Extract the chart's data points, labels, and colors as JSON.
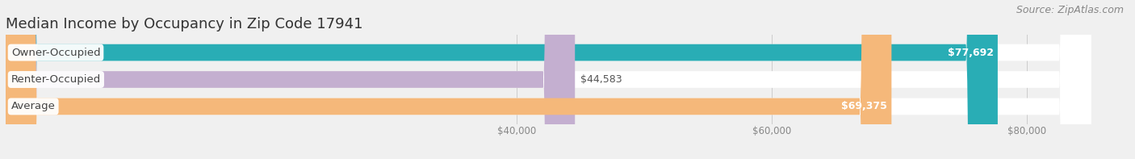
{
  "title": "Median Income by Occupancy in Zip Code 17941",
  "source": "Source: ZipAtlas.com",
  "categories": [
    "Owner-Occupied",
    "Renter-Occupied",
    "Average"
  ],
  "values": [
    77692,
    44583,
    69375
  ],
  "bar_colors": [
    "#29adb5",
    "#c4afd0",
    "#f5b87a"
  ],
  "value_labels": [
    "$77,692",
    "$44,583",
    "$69,375"
  ],
  "xmin": 0,
  "xmax": 85000,
  "xlim_left": 0,
  "xlim_right": 88000,
  "xticks": [
    40000,
    60000,
    80000
  ],
  "xtick_labels": [
    "$40,000",
    "$60,000",
    "$80,000"
  ],
  "bar_height": 0.62,
  "background_color": "#f0f0f0",
  "bar_bg_color": "#e8e8e8",
  "title_fontsize": 13,
  "source_fontsize": 9,
  "label_fontsize": 9.5,
  "value_fontsize": 9
}
